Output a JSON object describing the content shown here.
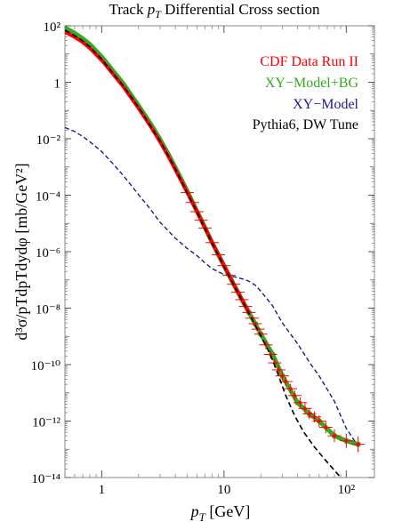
{
  "chart_data": {
    "type": "line",
    "title": "Track p_T Differential Cross section",
    "title_parts": {
      "prefix": "Track ",
      "var": "p",
      "sub": "T",
      "suffix": " Differential Cross section"
    },
    "xlabel": "p_T [GeV]",
    "xlabel_parts": {
      "var": "p",
      "sub": "T",
      "suffix": " [GeV]"
    },
    "ylabel": "d³σ/p_T dp_T dy dφ [mb/GeV²]",
    "ylabel_text": "d³σ/pTdpTdydφ [mb/GeV²]",
    "x_scale": "log",
    "y_scale": "log",
    "xlim": [
      0.5,
      170
    ],
    "ylim": [
      1e-14,
      100
    ],
    "x_ticks": [
      1,
      10,
      100
    ],
    "x_tick_labels": [
      "1",
      "10",
      "10²"
    ],
    "y_ticks": [
      1e-14,
      1e-12,
      1e-10,
      1e-08,
      1e-06,
      0.0001,
      0.01,
      1,
      100
    ],
    "y_tick_labels": [
      "10⁻¹⁴",
      "10⁻¹²",
      "10⁻¹⁰",
      "10⁻⁸",
      "10⁻⁶",
      "10⁻⁴",
      "10⁻²",
      "1",
      "10²"
    ],
    "grid": false,
    "legend_position": "top-right",
    "series": [
      {
        "name": "CDF Data Run II",
        "kind": "points-errorbars",
        "color": "#ff0000",
        "x": [
          0.5,
          0.6,
          0.7,
          0.8,
          1.0,
          1.2,
          1.5,
          2.0,
          2.5,
          3.0,
          3.5,
          4.0,
          4.5,
          5.0,
          5.5,
          6.0,
          6.5,
          7.0,
          8.0,
          9.0,
          10.0,
          11.0,
          12.0,
          13.0,
          14.0,
          15.0,
          16.0,
          17.0,
          18.0,
          19.0,
          20.0,
          22.0,
          24.0,
          26.0,
          28.0,
          30.0,
          32.0,
          35.0,
          38.0,
          42.0,
          46.0,
          50.0,
          55.0,
          60.0,
          68.0,
          80.0,
          100.0,
          125.0
        ],
        "y": [
          60,
          40,
          26,
          16,
          6.0,
          2.3,
          0.7,
          0.12,
          0.028,
          0.0078,
          0.0024,
          0.0008,
          0.0003,
          0.000125,
          5.5e-05,
          2.6e-05,
          1.3e-05,
          6.9e-06,
          2.1e-06,
          7.8e-07,
          3.2e-07,
          1.45e-07,
          7e-08,
          3.7e-08,
          2e-08,
          1.15e-08,
          7e-09,
          4.4e-09,
          2.8e-09,
          1.8e-09,
          1.2e-09,
          5e-10,
          2.3e-10,
          1.15e-10,
          6.5e-11,
          4e-11,
          2.5e-11,
          1.4e-11,
          8e-12,
          4.5e-12,
          2.8e-12,
          1.8e-12,
          1.4e-12,
          1e-12,
          6e-13,
          3e-13,
          2e-13,
          1.5e-13
        ]
      },
      {
        "name": "XY−Model+BG",
        "kind": "line-dots",
        "color": "#33aa22",
        "x": [
          0.5,
          0.6,
          0.7,
          0.8,
          1.0,
          1.2,
          1.5,
          2.0,
          2.5,
          3.0,
          3.5,
          4.0,
          4.5,
          5.0,
          6.0,
          7.0,
          8.0,
          10.0,
          12.0,
          14.0,
          16.0,
          18.0,
          20.0,
          25.0,
          30.0,
          40.0,
          50.0,
          60.0,
          80.0,
          100.0,
          125.0
        ],
        "y": [
          85,
          55,
          35,
          22,
          8.0,
          3.0,
          0.9,
          0.15,
          0.035,
          0.0095,
          0.0029,
          0.00095,
          0.00035,
          0.00014,
          2.8e-05,
          7e-06,
          2.1e-06,
          3.2e-07,
          7e-08,
          2e-08,
          7e-09,
          2.8e-09,
          1.2e-09,
          2.3e-10,
          4e-11,
          4.5e-12,
          1.8e-12,
          1e-12,
          3e-13,
          2e-13,
          1.5e-13
        ]
      },
      {
        "name": "XY−Model",
        "kind": "dashed",
        "color": "#1a1a8c",
        "x": [
          0.5,
          0.6,
          0.7,
          0.8,
          1.0,
          1.2,
          1.5,
          2.0,
          2.5,
          3.0,
          4.0,
          5.0,
          6.0,
          7.0,
          8.0,
          10.0,
          12.0,
          14.0,
          16.0,
          18.0,
          20.0,
          25.0,
          30.0,
          40.0,
          50.0,
          60.0,
          80.0,
          100.0,
          125.0
        ],
        "y": [
          0.025,
          0.018,
          0.012,
          0.0078,
          0.0035,
          0.0015,
          0.0005,
          0.000105,
          3.2e-05,
          1.1e-05,
          3e-06,
          1.3e-06,
          7.3e-07,
          4e-07,
          2.5e-07,
          1.55e-07,
          1.3e-07,
          1.1e-07,
          9e-08,
          6.5e-08,
          4e-08,
          1.2e-08,
          3e-09,
          5.5e-10,
          1.2e-10,
          4e-11,
          5e-12,
          5.5e-13,
          1.3e-13
        ]
      },
      {
        "name": "Pythia6, DW Tune",
        "kind": "dashed",
        "color": "#000000",
        "x": [
          0.5,
          0.6,
          0.7,
          0.8,
          1.0,
          1.2,
          1.5,
          2.0,
          2.5,
          3.0,
          3.5,
          4.0,
          5.0,
          6.0,
          8.0,
          10.0,
          12.0,
          15.0,
          18.0,
          20.0,
          24.0,
          28.0,
          32.0,
          38.0,
          45.0,
          55.0,
          65.0,
          80.0,
          100.0,
          115.0,
          125.0
        ],
        "y": [
          70,
          45,
          29,
          18,
          6.6,
          2.4,
          0.75,
          0.13,
          0.029,
          0.0082,
          0.0025,
          0.00085,
          0.00012,
          2.6e-05,
          2e-06,
          3e-07,
          6.7e-08,
          1.1e-08,
          2.5e-09,
          1.05e-09,
          2.2e-10,
          4e-11,
          8e-12,
          1.5e-12,
          4e-13,
          1.2e-13,
          5e-14,
          1.8e-14,
          6e-15,
          3e-15,
          2e-15
        ]
      }
    ]
  }
}
